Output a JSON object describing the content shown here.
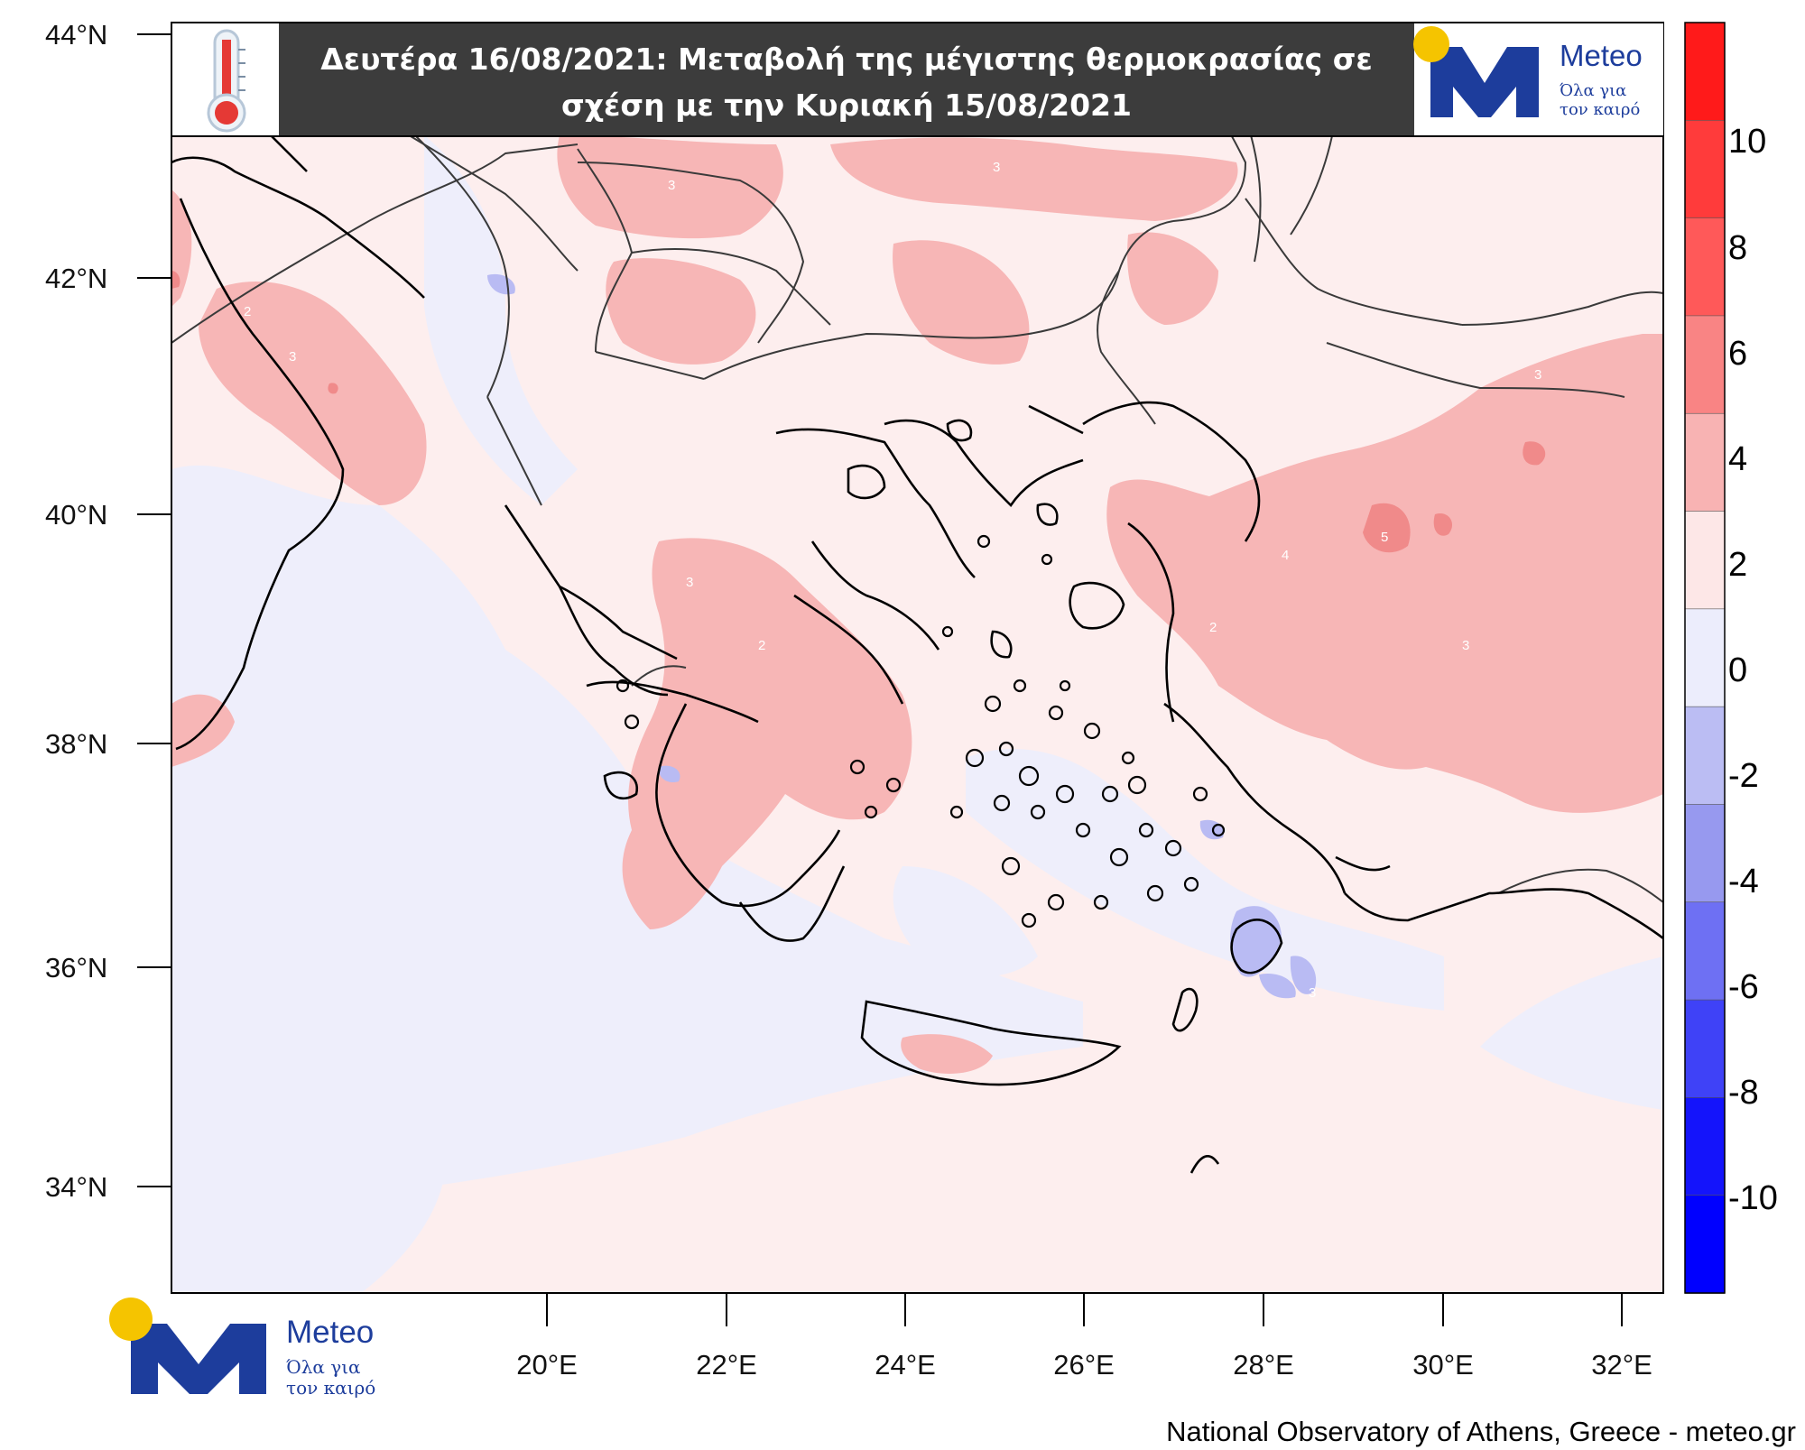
{
  "title": {
    "line1": "Δευτέρα 16/08/2021: Μεταβολή της μέγιστης θερμοκρασίας σε",
    "line2": "σχέση με την Κυριακή 15/08/2021"
  },
  "brand": {
    "name": "Meteo",
    "tagline_line1": "Όλα για",
    "tagline_line2": "τον καιρό",
    "colors": {
      "blue": "#1d3d9c",
      "yellow": "#f5c400"
    }
  },
  "credit": "National Observatory of Athens, Greece - meteo.gr",
  "map": {
    "lat_ticks": [
      "44°N",
      "42°N",
      "40°N",
      "38°N",
      "36°N",
      "34°N"
    ],
    "lon_ticks": [
      "20°E",
      "22°E",
      "24°E",
      "26°E",
      "28°E",
      "30°E",
      "32°E"
    ],
    "field_colors": {
      "neutral_warm": "#fdecec",
      "cool": "#ededfb",
      "warm": "#f7b6b6",
      "warmer": "#f08a8a",
      "cooler": "#b9bbf3"
    },
    "contour_label_values": [
      "2",
      "3",
      "4",
      "5"
    ]
  },
  "colorbar": {
    "labels": [
      "10",
      "8",
      "6",
      "4",
      "2",
      "0",
      "-2",
      "-4",
      "-6",
      "-8",
      "-10"
    ],
    "colors": [
      "#ff1a1a",
      "#ff3b3b",
      "#ff5959",
      "#f98484",
      "#f8b3b3",
      "#fde7e7",
      "#ecedfc",
      "#bbbdf3",
      "#9799ef",
      "#6e70f3",
      "#3f42f7",
      "#1414fb",
      "#0000ff"
    ]
  }
}
